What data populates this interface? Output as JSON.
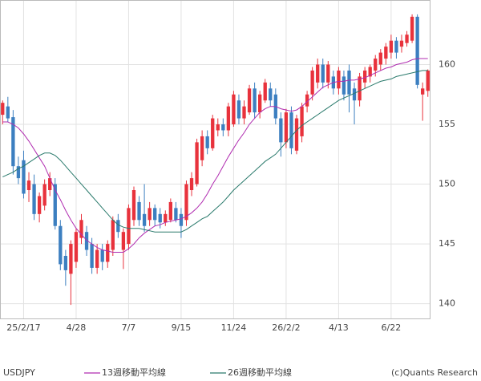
{
  "chart_data": {
    "type": "candlestick",
    "symbol": "USDJPY",
    "credit": "(c)Quants Research",
    "categories": [
      null,
      null,
      null,
      null,
      "25/2/17",
      null,
      null,
      null,
      null,
      null,
      null,
      null,
      null,
      null,
      "4/28",
      null,
      null,
      null,
      null,
      null,
      null,
      null,
      null,
      null,
      "7/7",
      null,
      null,
      null,
      null,
      null,
      null,
      null,
      null,
      null,
      "9/15",
      null,
      null,
      null,
      null,
      null,
      null,
      null,
      null,
      null,
      "11/24",
      null,
      null,
      null,
      null,
      null,
      null,
      null,
      null,
      null,
      "26/2/2",
      null,
      null,
      null,
      null,
      null,
      null,
      null,
      null,
      null,
      "4/13",
      null,
      null,
      null,
      null,
      null,
      null,
      null,
      null,
      null,
      "6/22",
      null,
      null,
      null,
      null,
      null,
      null,
      null
    ],
    "open": [
      155.8,
      156.5,
      155.6,
      151.5,
      152.0,
      149.5,
      150.0,
      147.5,
      148.2,
      149.5,
      150.0,
      146.5,
      144.0,
      142.5,
      143.5,
      145.5,
      146.0,
      145.0,
      143.0,
      144.5,
      143.5,
      144.5,
      147.0,
      144.5,
      145.0,
      147.0,
      148.5,
      147.5,
      147.0,
      148.0,
      147.5,
      146.8,
      147.0,
      148.0,
      147.5,
      147.0,
      149.5,
      150.0,
      152.0,
      154.0,
      153.0,
      154.5,
      155.0,
      154.5,
      155.0,
      157.0,
      155.5,
      156.0,
      158.0,
      156.0,
      157.0,
      158.0,
      157.5,
      155.5,
      153.5,
      156.0,
      152.8,
      154.0,
      156.5,
      157.5,
      158.5,
      160.0,
      158.5,
      159.0,
      158.0,
      159.0,
      159.5,
      158.0,
      157.0,
      158.5,
      159.0,
      159.5,
      160.0,
      160.5,
      161.0,
      162.0,
      161.5,
      161.8,
      162.0,
      164.0,
      157.5,
      157.8
    ],
    "high": [
      157.0,
      157.3,
      156.2,
      152.3,
      152.8,
      151.0,
      150.8,
      149.3,
      150.4,
      151.0,
      150.5,
      147.0,
      144.5,
      145.3,
      146.3,
      147.5,
      146.5,
      145.5,
      145.0,
      145.0,
      145.3,
      147.3,
      147.5,
      146.3,
      148.3,
      149.8,
      149.0,
      150.0,
      148.5,
      148.3,
      148.0,
      147.8,
      148.8,
      148.5,
      148.0,
      150.3,
      151.0,
      153.8,
      154.5,
      154.5,
      155.8,
      155.5,
      155.5,
      156.8,
      157.8,
      157.5,
      157.0,
      158.3,
      158.5,
      157.8,
      158.8,
      158.5,
      158.0,
      156.0,
      156.3,
      156.5,
      155.8,
      156.8,
      157.8,
      159.8,
      160.5,
      160.5,
      160.3,
      159.5,
      159.8,
      159.5,
      160.0,
      158.5,
      159.3,
      159.8,
      160.0,
      160.8,
      161.3,
      161.8,
      162.5,
      162.3,
      162.5,
      162.8,
      164.2,
      164.2,
      158.5,
      159.6
    ],
    "low": [
      155.0,
      155.2,
      150.8,
      150.0,
      148.8,
      148.5,
      147.0,
      146.8,
      147.8,
      149.0,
      146.2,
      142.8,
      141.5,
      139.9,
      143.0,
      145.0,
      144.0,
      142.5,
      142.5,
      142.8,
      143.0,
      144.0,
      145.5,
      142.9,
      144.5,
      146.5,
      146.5,
      146.0,
      146.5,
      146.5,
      146.3,
      146.5,
      146.8,
      146.8,
      145.5,
      146.5,
      149.0,
      149.8,
      151.5,
      152.5,
      152.8,
      154.0,
      154.0,
      154.0,
      154.8,
      155.0,
      155.0,
      155.8,
      155.5,
      155.5,
      156.8,
      156.5,
      155.0,
      152.3,
      153.0,
      152.5,
      152.5,
      153.5,
      156.0,
      157.0,
      158.0,
      158.0,
      158.0,
      157.5,
      157.5,
      157.0,
      156.0,
      155.0,
      156.5,
      158.0,
      158.5,
      159.0,
      159.5,
      160.0,
      160.5,
      160.5,
      161.0,
      161.5,
      161.8,
      158.0,
      155.3,
      157.3
    ],
    "close": [
      156.8,
      155.5,
      151.5,
      150.5,
      149.2,
      150.3,
      147.5,
      149.0,
      150.0,
      150.5,
      146.5,
      143.3,
      142.8,
      145.0,
      146.0,
      147.0,
      144.5,
      143.0,
      144.5,
      143.5,
      145.0,
      147.0,
      146.0,
      146.0,
      148.0,
      149.5,
      147.0,
      146.5,
      148.0,
      147.0,
      146.8,
      147.5,
      148.5,
      147.0,
      146.5,
      150.0,
      150.5,
      153.5,
      154.0,
      153.0,
      155.5,
      155.0,
      154.5,
      156.5,
      157.5,
      155.5,
      156.5,
      158.0,
      156.0,
      157.5,
      158.5,
      157.0,
      155.5,
      153.5,
      156.0,
      153.0,
      155.5,
      156.5,
      157.5,
      159.5,
      160.0,
      158.5,
      160.0,
      158.0,
      159.5,
      157.5,
      157.5,
      157.0,
      159.0,
      159.5,
      159.8,
      160.5,
      161.0,
      161.5,
      162.0,
      161.0,
      162.0,
      162.5,
      164.0,
      158.3,
      158.0,
      159.5
    ],
    "up_color": "#e8323c",
    "down_color": "#3c7fc0",
    "series": [
      {
        "name": "13週移動平均線",
        "color": "#b02cb0",
        "values": [
          155.2,
          155.2,
          155.0,
          154.7,
          154.2,
          153.6,
          152.9,
          152.2,
          151.5,
          150.5,
          149.5,
          148.7,
          147.8,
          147.0,
          146.3,
          145.8,
          145.3,
          145.0,
          144.7,
          144.5,
          144.4,
          144.3,
          144.3,
          144.3,
          144.6,
          145.0,
          145.5,
          145.9,
          146.2,
          146.5,
          146.6,
          146.8,
          146.9,
          147.0,
          147.1,
          147.3,
          147.6,
          148.0,
          148.5,
          149.2,
          150.0,
          150.7,
          151.5,
          152.3,
          153.0,
          153.7,
          154.3,
          155.0,
          155.5,
          156.0,
          156.3,
          156.5,
          156.5,
          156.3,
          156.2,
          156.1,
          156.2,
          156.5,
          156.9,
          157.3,
          157.7,
          158.1,
          158.3,
          158.5,
          158.6,
          158.6,
          158.7,
          158.7,
          158.8,
          158.9,
          159.1,
          159.3,
          159.5,
          159.7,
          159.8,
          160.0,
          160.1,
          160.2,
          160.4,
          160.5,
          160.5,
          160.5
        ]
      },
      {
        "name": "26週移動平均線",
        "color": "#2a7a6c",
        "values": [
          150.6,
          150.8,
          151.0,
          151.3,
          151.5,
          151.8,
          152.1,
          152.4,
          152.6,
          152.6,
          152.4,
          152.0,
          151.5,
          151.0,
          150.5,
          150.0,
          149.5,
          149.0,
          148.5,
          148.0,
          147.5,
          147.0,
          146.6,
          146.4,
          146.3,
          146.3,
          146.3,
          146.2,
          146.1,
          146.0,
          146.0,
          146.0,
          146.0,
          146.0,
          146.0,
          146.2,
          146.5,
          146.8,
          147.1,
          147.3,
          147.7,
          148.1,
          148.5,
          149.0,
          149.5,
          149.9,
          150.3,
          150.7,
          151.1,
          151.5,
          151.9,
          152.2,
          152.5,
          153.0,
          153.5,
          154.0,
          154.5,
          154.9,
          155.2,
          155.5,
          155.8,
          156.1,
          156.4,
          156.7,
          157.0,
          157.2,
          157.4,
          157.6,
          157.8,
          158.0,
          158.2,
          158.4,
          158.6,
          158.7,
          158.8,
          159.0,
          159.1,
          159.2,
          159.3,
          159.4,
          159.5,
          159.5
        ]
      }
    ],
    "ylim": [
      138.7,
      165.4
    ],
    "yticks": [
      140,
      145,
      150,
      155,
      160
    ],
    "grid": true
  }
}
